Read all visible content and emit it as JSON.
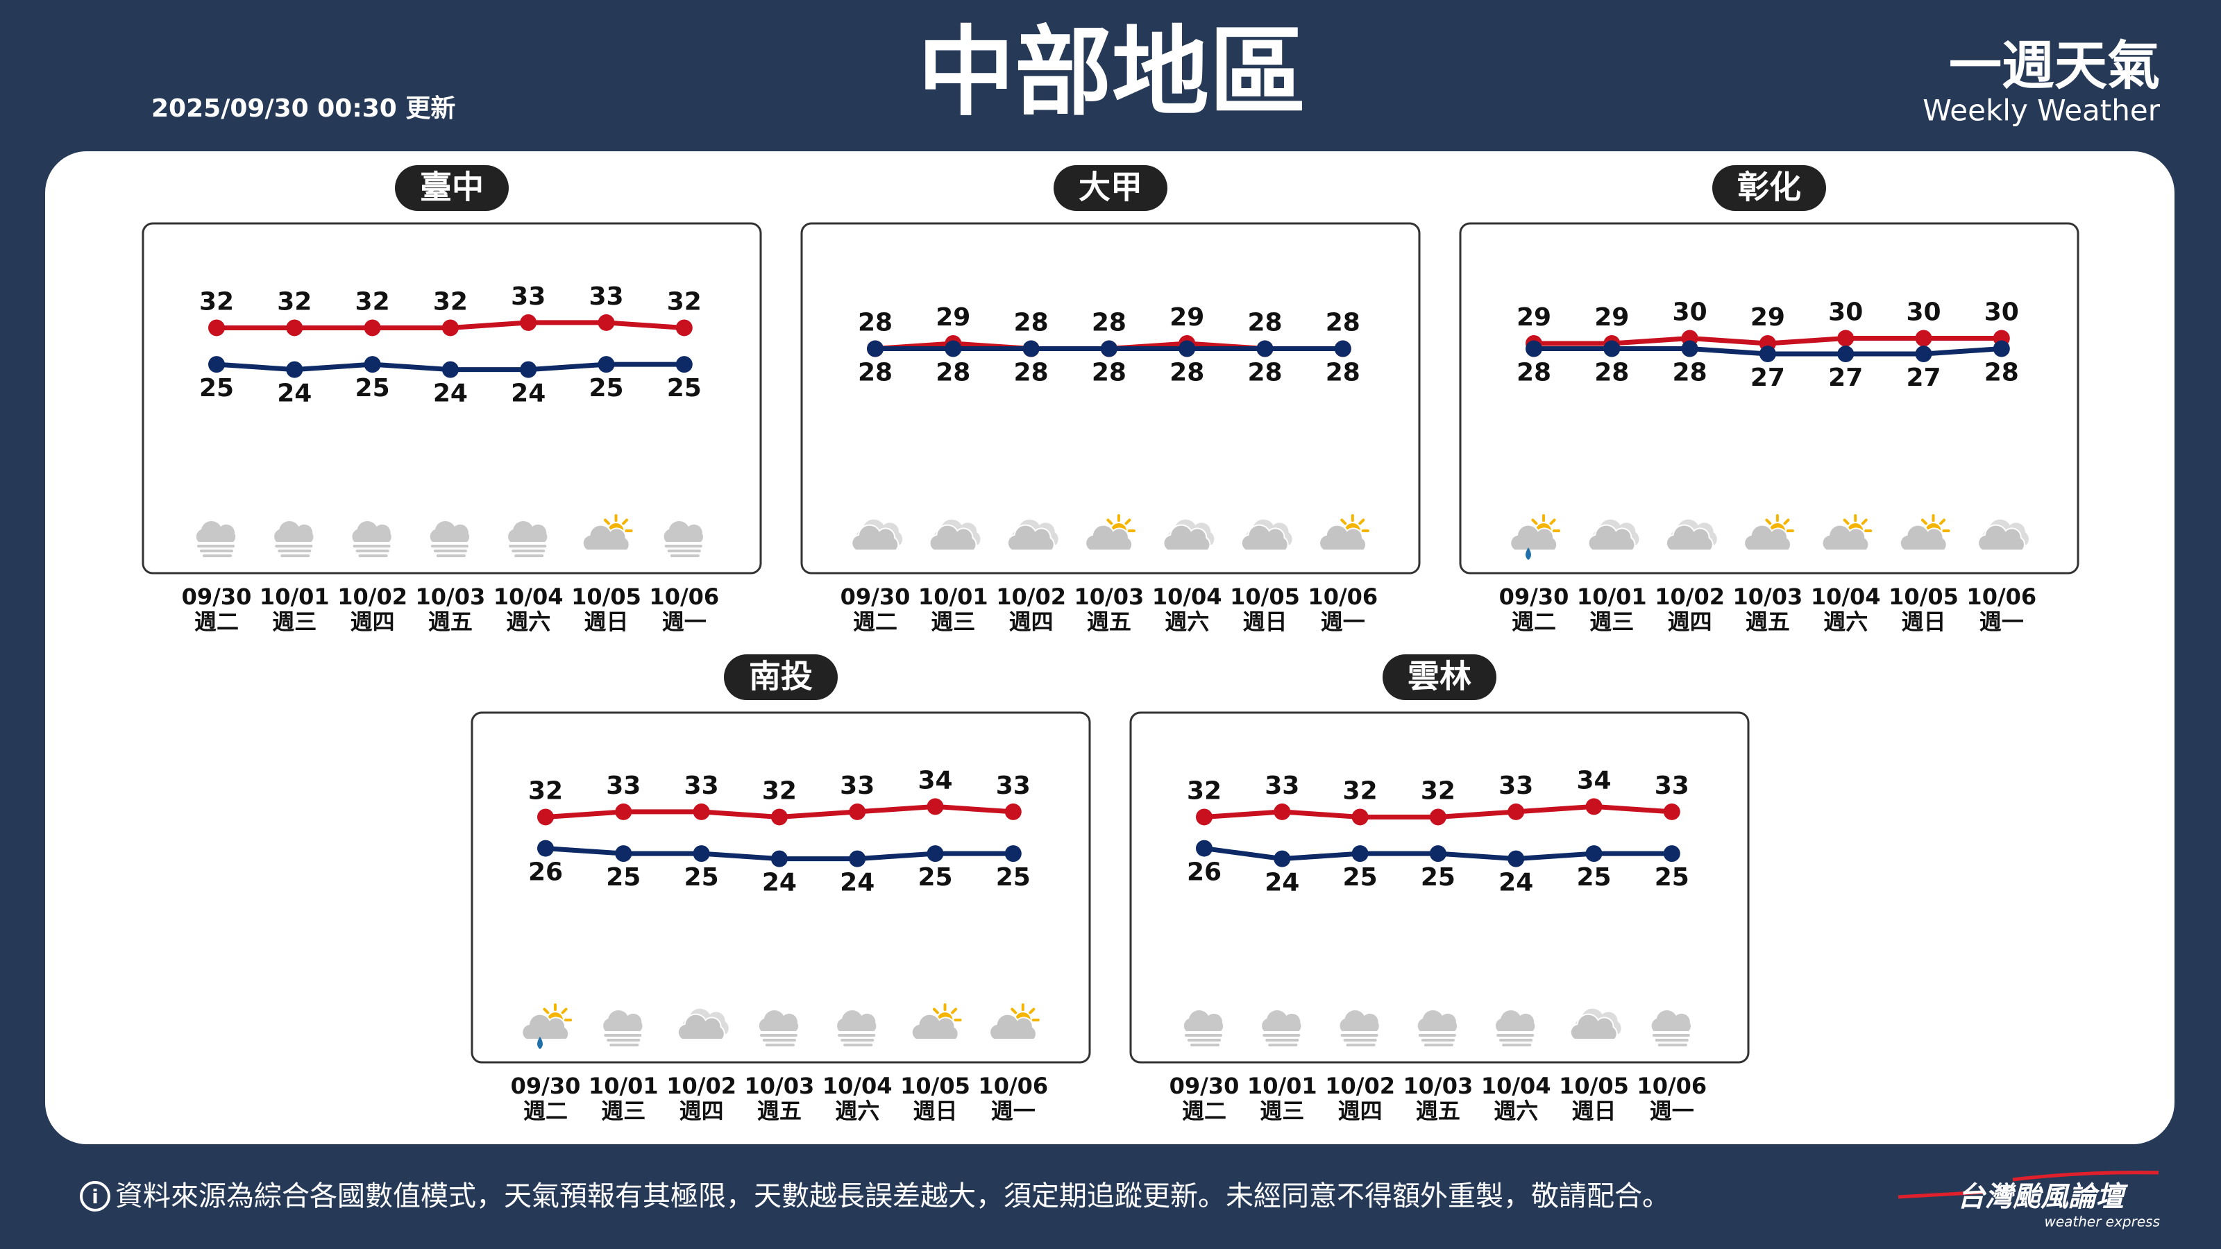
{
  "header": {
    "title": "中部地區",
    "updated": "2025/09/30 00:30 更新",
    "brand_title": "一週天氣",
    "brand_subtitle": "Weekly Weather"
  },
  "chart_data": [
    {
      "type": "line",
      "title": "臺中",
      "categories": [
        "09/30",
        "10/01",
        "10/02",
        "10/03",
        "10/04",
        "10/05",
        "10/06"
      ],
      "weekdays": [
        "週二",
        "週三",
        "週四",
        "週五",
        "週六",
        "週日",
        "週一"
      ],
      "ylim": [
        -15,
        52
      ],
      "series": [
        {
          "color": "#c8101e",
          "values": [
            32,
            32,
            32,
            32,
            33,
            33,
            32
          ]
        },
        {
          "color": "#0d2a66",
          "values": [
            25,
            24,
            25,
            24,
            24,
            25,
            25
          ]
        }
      ]
    },
    {
      "type": "line",
      "title": "大甲",
      "categories": [
        "09/30",
        "10/01",
        "10/02",
        "10/03",
        "10/04",
        "10/05",
        "10/06"
      ],
      "weekdays": [
        "週二",
        "週三",
        "週四",
        "週五",
        "週六",
        "週日",
        "週一"
      ],
      "ylim": [
        -15,
        52
      ],
      "series": [
        {
          "color": "#c8101e",
          "values": [
            28,
            29,
            28,
            28,
            29,
            28,
            28
          ]
        },
        {
          "color": "#0d2a66",
          "values": [
            28,
            28,
            28,
            28,
            28,
            28,
            28
          ]
        }
      ]
    },
    {
      "type": "line",
      "title": "彰化",
      "categories": [
        "09/30",
        "10/01",
        "10/02",
        "10/03",
        "10/04",
        "10/05",
        "10/06"
      ],
      "weekdays": [
        "週二",
        "週三",
        "週四",
        "週五",
        "週六",
        "週日",
        "週一"
      ],
      "ylim": [
        -15,
        52
      ],
      "series": [
        {
          "color": "#c8101e",
          "values": [
            29,
            29,
            30,
            29,
            30,
            30,
            30
          ]
        },
        {
          "color": "#0d2a66",
          "values": [
            28,
            28,
            28,
            27,
            27,
            27,
            28
          ]
        }
      ]
    },
    {
      "type": "line",
      "title": "南投",
      "categories": [
        "09/30",
        "10/01",
        "10/02",
        "10/03",
        "10/04",
        "10/05",
        "10/06"
      ],
      "weekdays": [
        "週二",
        "週三",
        "週四",
        "週五",
        "週六",
        "週日",
        "週一"
      ],
      "ylim": [
        -15,
        52
      ],
      "series": [
        {
          "color": "#c8101e",
          "values": [
            32,
            33,
            33,
            32,
            33,
            34,
            33
          ]
        },
        {
          "color": "#0d2a66",
          "values": [
            26,
            25,
            25,
            24,
            24,
            25,
            25
          ]
        }
      ]
    },
    {
      "type": "line",
      "title": "雲林",
      "categories": [
        "09/30",
        "10/01",
        "10/02",
        "10/03",
        "10/04",
        "10/05",
        "10/06"
      ],
      "weekdays": [
        "週二",
        "週三",
        "週四",
        "週五",
        "週六",
        "週日",
        "週一"
      ],
      "ylim": [
        -15,
        52
      ],
      "series": [
        {
          "color": "#c8101e",
          "values": [
            32,
            33,
            32,
            32,
            33,
            34,
            33
          ]
        },
        {
          "color": "#0d2a66",
          "values": [
            26,
            24,
            25,
            25,
            24,
            25,
            25
          ]
        }
      ]
    }
  ],
  "footer": {
    "note": "資料來源為綜合各國數值模式，天氣預報有其極限，天數越長誤差越大，須定期追蹤更新。未經同意不得額外重製，敬請配合。",
    "logo": "台灣颱風論壇",
    "logo_sub": "weather express"
  }
}
